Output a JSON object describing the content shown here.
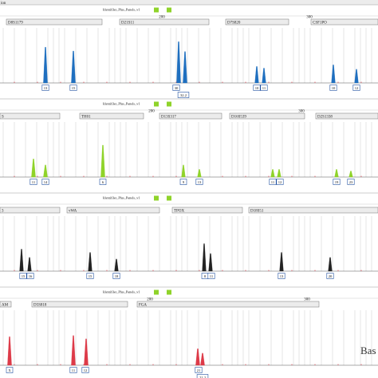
{
  "header": {
    "corner_text": "ion"
  },
  "panels": [
    {
      "kit_label": "Identifiler_Plus_Panels_v1",
      "top": 8,
      "color": "#1f6fbf",
      "ticks": [
        {
          "label": "200",
          "x": 203
        },
        {
          "label": "300",
          "x": 388
        }
      ],
      "markers": [
        {
          "label": "D8S1179",
          "x0": 8,
          "x1": 128
        },
        {
          "label": "D21S11",
          "x0": 150,
          "x1": 262
        },
        {
          "label": "D7S820",
          "x0": 283,
          "x1": 362
        },
        {
          "label": "CSF1PO",
          "x0": 390,
          "x1": 474
        }
      ],
      "peaks": [
        {
          "x": 57,
          "h": 0.65,
          "w": 1.3
        },
        {
          "x": 92,
          "h": 0.58,
          "w": 1.3
        },
        {
          "x": 224,
          "h": 0.75,
          "w": 1.3
        },
        {
          "x": 232,
          "h": 0.57,
          "w": 1.3
        },
        {
          "x": 322,
          "h": 0.3,
          "w": 1.2
        },
        {
          "x": 331,
          "h": 0.27,
          "w": 1.2
        },
        {
          "x": 418,
          "h": 0.33,
          "w": 1.2
        },
        {
          "x": 447,
          "h": 0.25,
          "w": 1.2
        }
      ],
      "alleles": [
        {
          "label": "13",
          "x": 57
        },
        {
          "label": "15",
          "x": 92
        },
        {
          "label": "30",
          "x": 221
        },
        {
          "label": "32.2",
          "x": 230,
          "row": 2
        },
        {
          "label": "10",
          "x": 322
        },
        {
          "label": "11",
          "x": 331
        },
        {
          "label": "10",
          "x": 418
        },
        {
          "label": "12",
          "x": 447
        }
      ]
    },
    {
      "kit_label": "Identifiler_Plus_Panels_v1",
      "top": 126,
      "color": "#8fd32a",
      "ticks": [
        {
          "label": "200",
          "x": 190
        },
        {
          "label": "300",
          "x": 378
        }
      ],
      "markers": [
        {
          "label": "S",
          "x0": 0,
          "x1": 75
        },
        {
          "label": "TH01",
          "x0": 100,
          "x1": 180
        },
        {
          "label": "D13S317",
          "x0": 200,
          "x1": 278
        },
        {
          "label": "D16S539",
          "x0": 288,
          "x1": 382
        },
        {
          "label": "D2S1338",
          "x0": 396,
          "x1": 474
        }
      ],
      "peaks": [
        {
          "x": 42,
          "h": 0.33,
          "w": 1.3
        },
        {
          "x": 57,
          "h": 0.22,
          "w": 1.3
        },
        {
          "x": 129,
          "h": 0.58,
          "w": 1.3
        },
        {
          "x": 230,
          "h": 0.22,
          "w": 1.2
        },
        {
          "x": 250,
          "h": 0.14,
          "w": 1.2
        },
        {
          "x": 342,
          "h": 0.14,
          "w": 1.2
        },
        {
          "x": 350,
          "h": 0.14,
          "w": 1.2
        },
        {
          "x": 422,
          "h": 0.14,
          "w": 1.2
        },
        {
          "x": 440,
          "h": 0.11,
          "w": 1.2
        }
      ],
      "alleles": [
        {
          "label": "11",
          "x": 42
        },
        {
          "label": "14",
          "x": 57
        },
        {
          "label": "6",
          "x": 129
        },
        {
          "label": "9",
          "x": 230
        },
        {
          "label": "13",
          "x": 250
        },
        {
          "label": "11",
          "x": 342
        },
        {
          "label": "12",
          "x": 351
        },
        {
          "label": "19",
          "x": 422
        },
        {
          "label": "23",
          "x": 440
        }
      ]
    },
    {
      "kit_label": "Identifiler_Plus_Panels_v1",
      "top": 244,
      "color": "#222222",
      "ticks": [],
      "markers": [
        {
          "label": "3",
          "x0": 0,
          "x1": 75
        },
        {
          "label": "vWA",
          "x0": 84,
          "x1": 200
        },
        {
          "label": "TPOX",
          "x0": 216,
          "x1": 304
        },
        {
          "label": "D18S51",
          "x0": 312,
          "x1": 474
        }
      ],
      "peaks": [
        {
          "x": 27,
          "h": 0.4,
          "w": 1.2
        },
        {
          "x": 37,
          "h": 0.25,
          "w": 1.2
        },
        {
          "x": 113,
          "h": 0.34,
          "w": 1.2
        },
        {
          "x": 146,
          "h": 0.22,
          "w": 1.2
        },
        {
          "x": 256,
          "h": 0.5,
          "w": 1.2
        },
        {
          "x": 264,
          "h": 0.32,
          "w": 1.2
        },
        {
          "x": 353,
          "h": 0.34,
          "w": 1.2
        },
        {
          "x": 414,
          "h": 0.25,
          "w": 1.2
        }
      ],
      "alleles": [
        {
          "label": "15",
          "x": 29
        },
        {
          "label": "16",
          "x": 38
        },
        {
          "label": "15",
          "x": 113
        },
        {
          "label": "18",
          "x": 146
        },
        {
          "label": "8",
          "x": 257
        },
        {
          "label": "11",
          "x": 265
        },
        {
          "label": "13",
          "x": 353
        },
        {
          "label": "20",
          "x": 414
        }
      ]
    },
    {
      "kit_label": "Identifiler_Plus_Panels_v1",
      "top": 362,
      "color": "#dd3a48",
      "ticks": [
        {
          "label": "200",
          "x": 188
        },
        {
          "label": "300",
          "x": 385
        }
      ],
      "markers": [
        {
          "label": "AM",
          "x0": 0,
          "x1": 14
        },
        {
          "label": "D5S818",
          "x0": 40,
          "x1": 160
        },
        {
          "label": "FGA",
          "x0": 172,
          "x1": 400
        }
      ],
      "peaks": [
        {
          "x": 12,
          "h": 0.52,
          "w": 1.3
        },
        {
          "x": 92,
          "h": 0.54,
          "w": 1.3
        },
        {
          "x": 108,
          "h": 0.48,
          "w": 1.3
        },
        {
          "x": 248,
          "h": 0.3,
          "w": 1.3
        },
        {
          "x": 254,
          "h": 0.22,
          "w": 1.3
        }
      ],
      "alleles": [
        {
          "label": "X",
          "x": 12
        },
        {
          "label": "11",
          "x": 92
        },
        {
          "label": "12",
          "x": 107
        },
        {
          "label": "21",
          "x": 249
        },
        {
          "label": "21.2",
          "x": 254,
          "row": 2
        }
      ]
    }
  ],
  "corner_text": "Bas"
}
